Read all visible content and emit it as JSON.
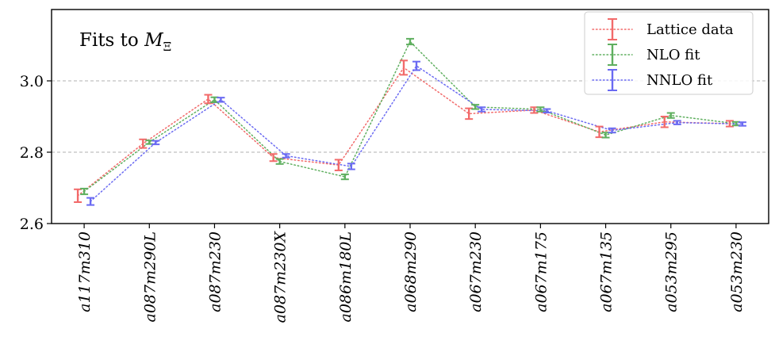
{
  "chart_data": {
    "type": "line",
    "title": "",
    "annotation": "Fits to M_Ξ",
    "annotation_prefix": "Fits to ",
    "annotation_symbol": "M",
    "annotation_subscript": "Ξ",
    "xlabel": "",
    "ylabel": "",
    "ylim": [
      2.6,
      3.2
    ],
    "yticks": [
      2.6,
      2.8,
      3.0
    ],
    "ytick_labels": [
      "2.6",
      "2.8",
      "3.0"
    ],
    "grid": "horizontal dashed at major ticks",
    "legend_position": "top-right",
    "categories": [
      "a117m310",
      "a087m290L",
      "a087m230",
      "a087m230X",
      "a086m180L",
      "a068m290",
      "a067m230",
      "a067m175",
      "a067m135",
      "a053m295",
      "a053m230"
    ],
    "series": [
      {
        "name": "Lattice data",
        "color": "#f26a6a",
        "values": [
          2.678,
          2.824,
          2.949,
          2.785,
          2.764,
          3.037,
          2.908,
          2.918,
          2.857,
          2.885,
          2.88
        ],
        "errors": [
          0.018,
          0.012,
          0.012,
          0.01,
          0.015,
          0.02,
          0.015,
          0.008,
          0.015,
          0.015,
          0.008
        ]
      },
      {
        "name": "NLO fit",
        "color": "#5faf5f",
        "values": [
          2.69,
          2.828,
          2.947,
          2.774,
          2.731,
          3.11,
          2.927,
          2.92,
          2.848,
          2.903,
          2.88
        ],
        "errors": [
          0.008,
          0.005,
          0.007,
          0.007,
          0.007,
          0.008,
          0.006,
          0.006,
          0.007,
          0.007,
          0.005
        ]
      },
      {
        "name": "NNLO fit",
        "color": "#6a6af2",
        "values": [
          2.662,
          2.827,
          2.947,
          2.79,
          2.76,
          3.042,
          2.92,
          2.916,
          2.861,
          2.883,
          2.879
        ],
        "errors": [
          0.01,
          0.005,
          0.006,
          0.005,
          0.008,
          0.012,
          0.006,
          0.005,
          0.006,
          0.005,
          0.005
        ]
      }
    ]
  }
}
